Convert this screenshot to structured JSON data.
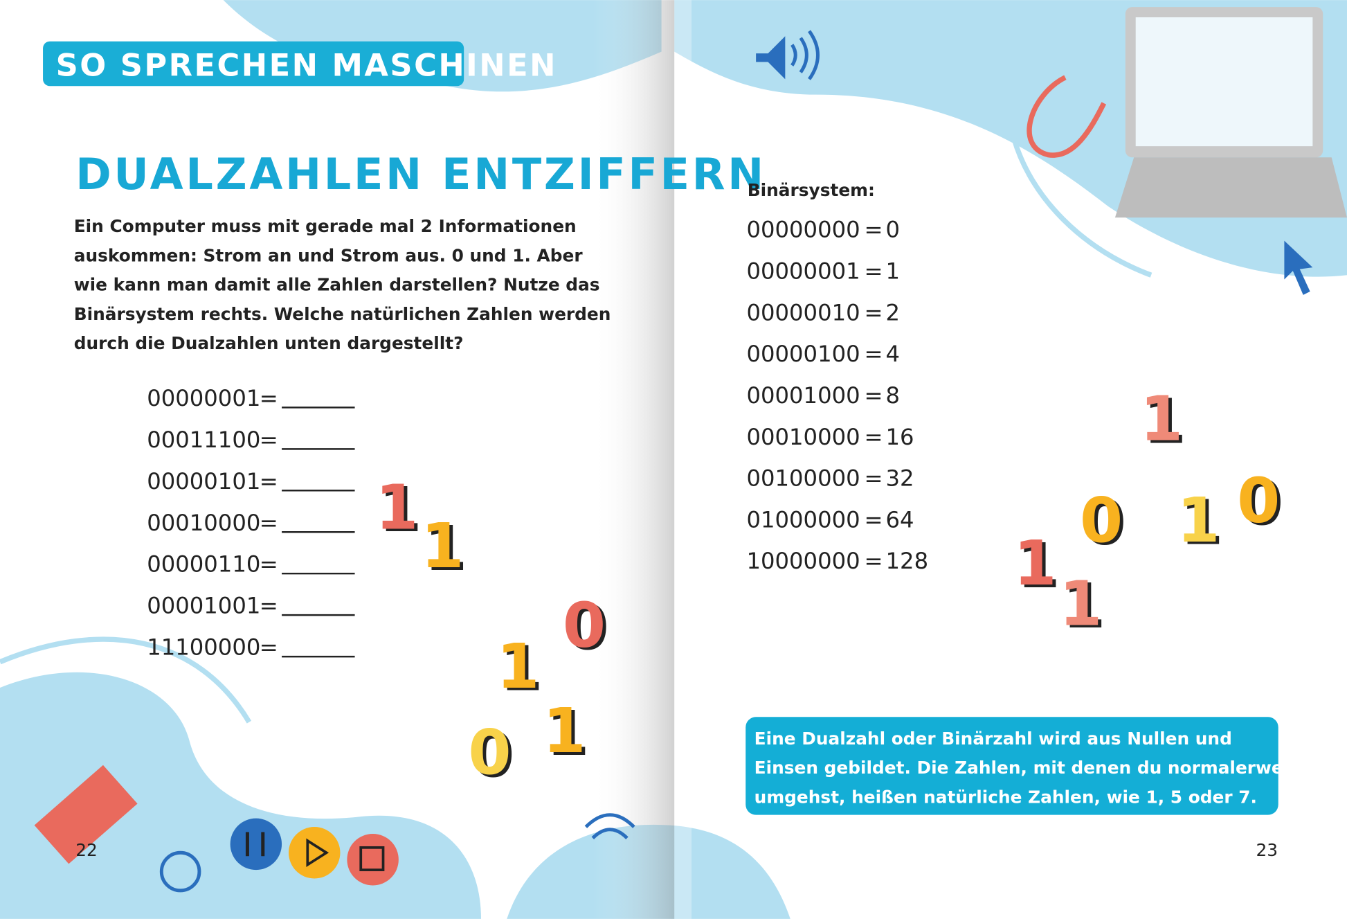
{
  "header": {
    "tag": "SO SPRECHEN MASCHINEN"
  },
  "left_page": {
    "title": "DUALZAHLEN ENTZIFFERN",
    "intro": [
      "Ein Computer muss mit gerade mal 2 Informationen",
      "auskommen: Strom an und Strom aus. 0 und 1. Aber",
      "wie kann man damit alle Zahlen darstellen? Nutze das",
      "Binärsystem rechts. Welche natürlichen Zahlen werden",
      "durch die Dualzahlen unten dargestellt?"
    ],
    "exercises": [
      "00000001",
      "00011100",
      "00000101",
      "00010000",
      "00000110",
      "00001001",
      "11100000"
    ],
    "equals": "=",
    "page_number": "22"
  },
  "right_page": {
    "system_label": "Binärsystem:",
    "rows": [
      [
        "00000000",
        "0"
      ],
      [
        "00000001",
        "1"
      ],
      [
        "00000010",
        "2"
      ],
      [
        "00000100",
        "4"
      ],
      [
        "00001000",
        "8"
      ],
      [
        "00010000",
        "16"
      ],
      [
        "00100000",
        "32"
      ],
      [
        "01000000",
        "64"
      ],
      [
        "10000000",
        "128"
      ]
    ],
    "info": [
      "Eine Dualzahl oder Binärzahl wird aus Nullen und",
      "Einsen gebildet. Die Zahlen, mit denen du normalerweise",
      "umgehst, heißen natürliche Zahlen, wie 1, 5 oder 7."
    ],
    "page_number": "23"
  },
  "decor_digits": [
    "1",
    "1",
    "0",
    "1",
    "1",
    "0",
    "1",
    "0",
    "1",
    "0",
    "1",
    "1"
  ]
}
